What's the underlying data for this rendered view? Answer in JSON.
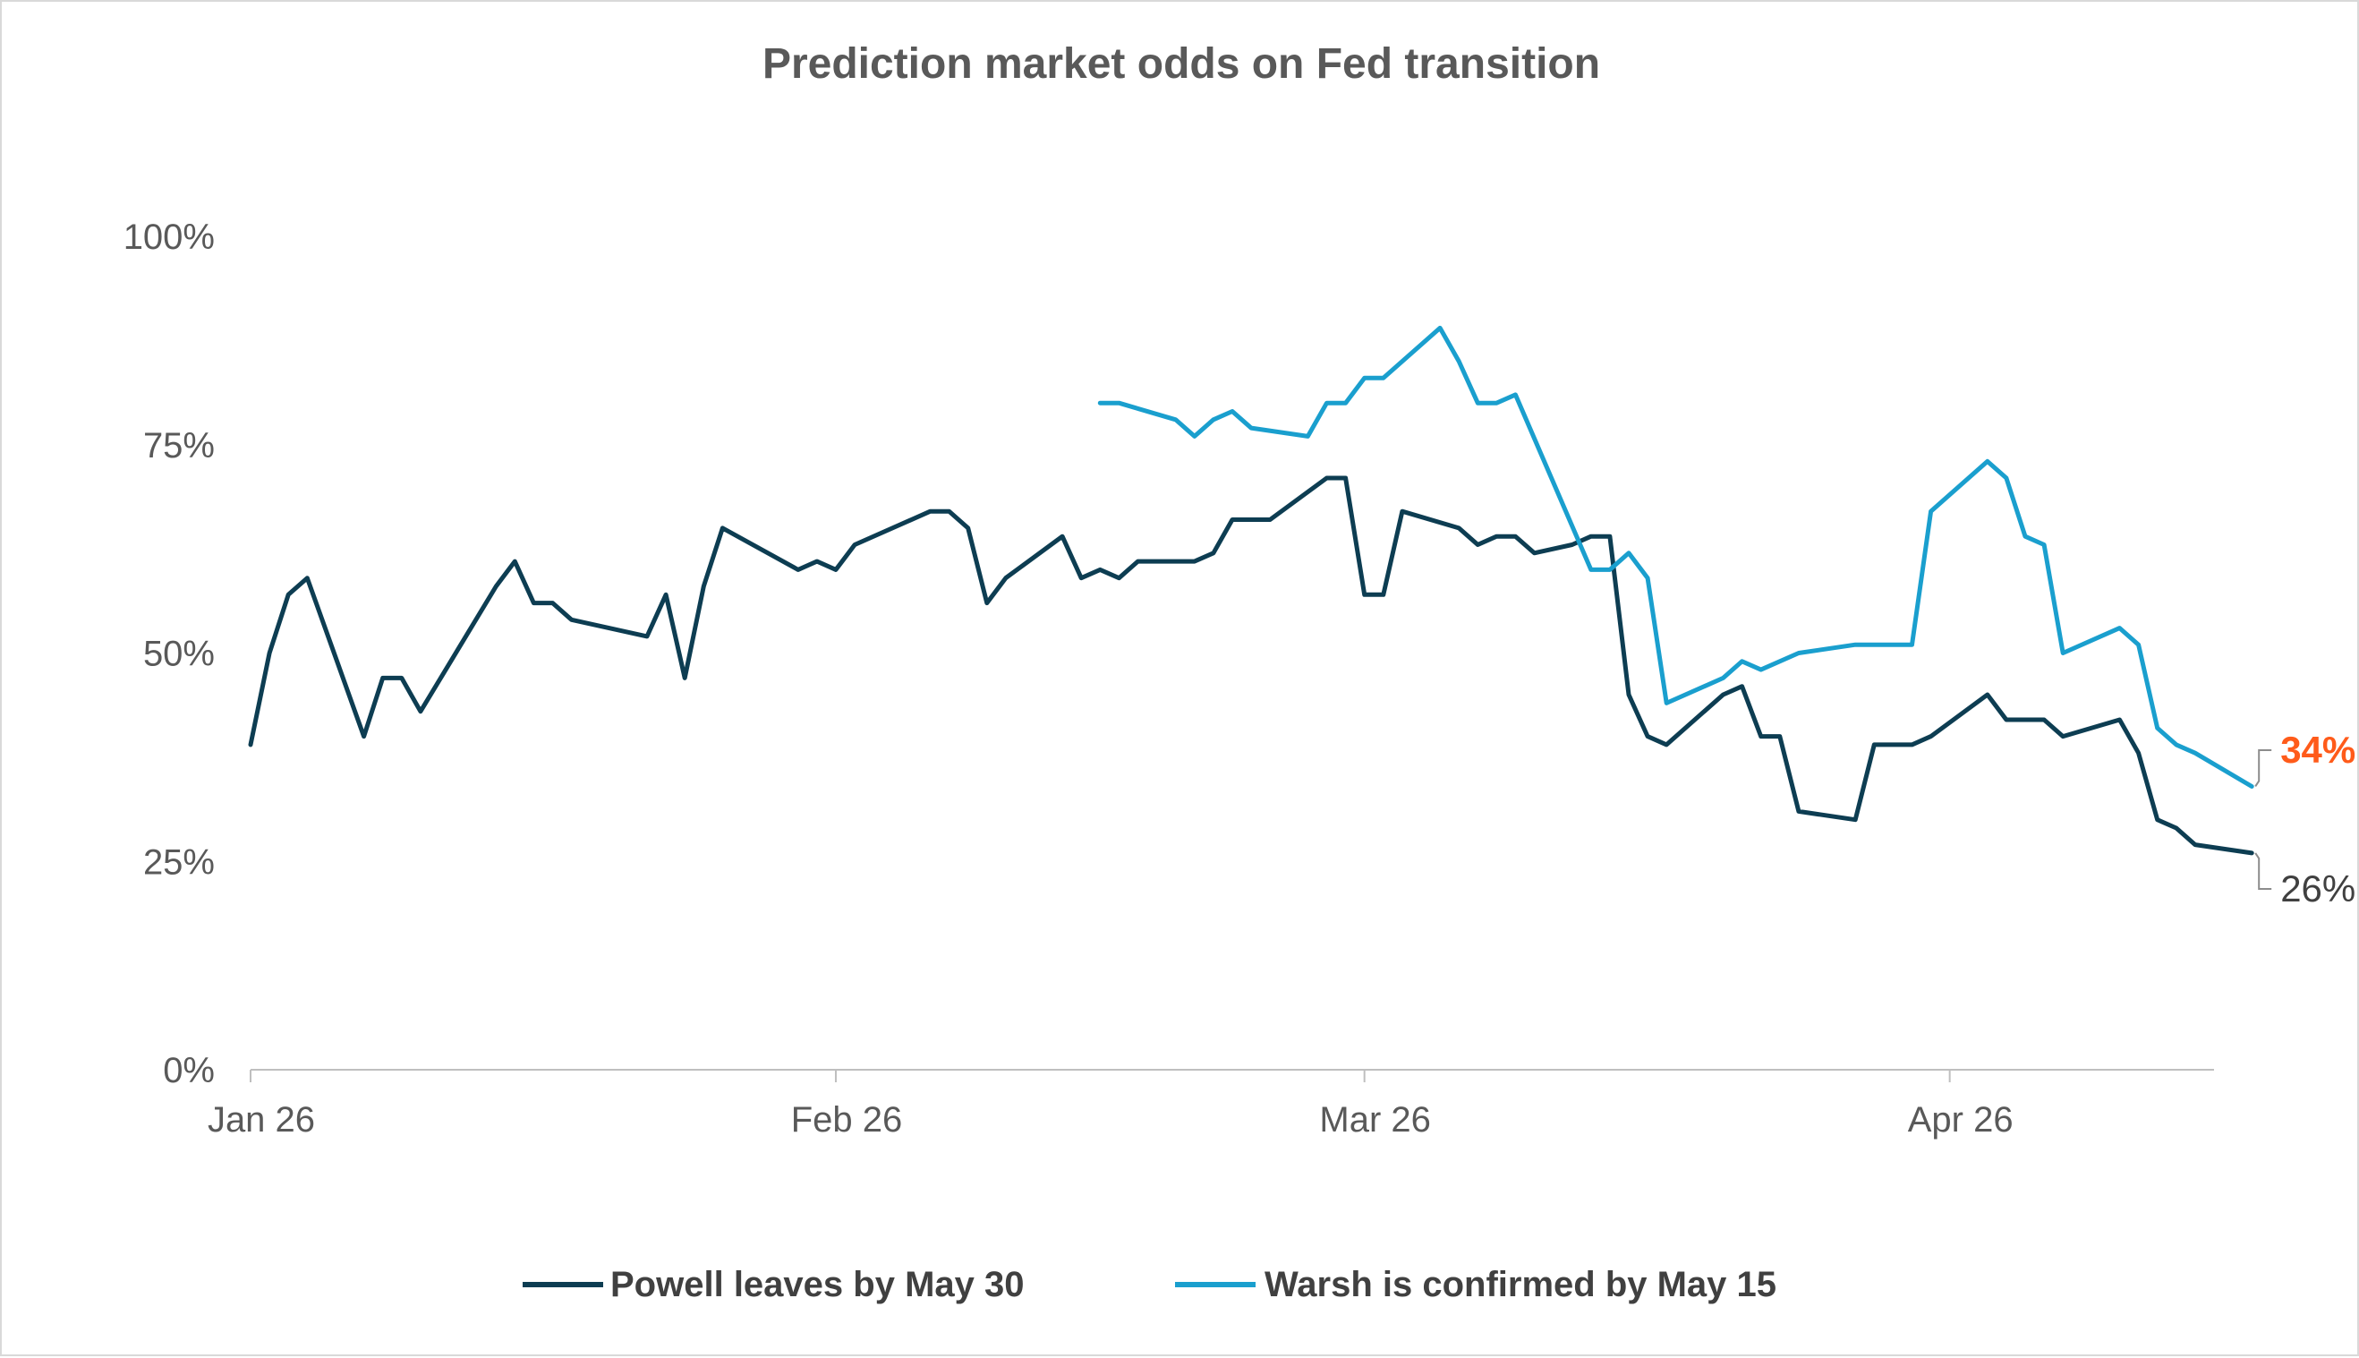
{
  "chart_data": {
    "type": "line",
    "title": "Prediction market odds on Fed transition",
    "xlabel": "",
    "ylabel": "",
    "x_ticks": [
      {
        "date": "2026-01-01",
        "label": "Jan 26"
      },
      {
        "date": "2026-02-01",
        "label": "Feb 26"
      },
      {
        "date": "2026-03-01",
        "label": "Mar 26"
      },
      {
        "date": "2026-04-01",
        "label": "Apr 26"
      }
    ],
    "xlim": [
      "2026-01-01",
      "2026-04-15"
    ],
    "y_ticks": [
      0,
      25,
      50,
      75,
      100
    ],
    "y_tick_labels": [
      "0%",
      "25%",
      "50%",
      "75%",
      "100%"
    ],
    "ylim": [
      0,
      100
    ],
    "grid": false,
    "legend_position": "bottom",
    "series": [
      {
        "name": "Powell leaves by May 30",
        "color": "#0d3d52",
        "end_label": "26%",
        "end_label_color": "#404040",
        "points": [
          [
            "2026-01-01",
            39
          ],
          [
            "2026-01-02",
            50
          ],
          [
            "2026-01-03",
            57
          ],
          [
            "2026-01-04",
            59
          ],
          [
            "2026-01-07",
            40
          ],
          [
            "2026-01-08",
            47
          ],
          [
            "2026-01-09",
            47
          ],
          [
            "2026-01-10",
            43
          ],
          [
            "2026-01-14",
            58
          ],
          [
            "2026-01-15",
            61
          ],
          [
            "2026-01-16",
            56
          ],
          [
            "2026-01-17",
            56
          ],
          [
            "2026-01-18",
            54
          ],
          [
            "2026-01-22",
            52
          ],
          [
            "2026-01-23",
            57
          ],
          [
            "2026-01-24",
            47
          ],
          [
            "2026-01-25",
            58
          ],
          [
            "2026-01-26",
            65
          ],
          [
            "2026-01-30",
            60
          ],
          [
            "2026-01-31",
            61
          ],
          [
            "2026-02-01",
            60
          ],
          [
            "2026-02-02",
            63
          ],
          [
            "2026-02-06",
            67
          ],
          [
            "2026-02-07",
            67
          ],
          [
            "2026-02-08",
            65
          ],
          [
            "2026-02-09",
            56
          ],
          [
            "2026-02-10",
            59
          ],
          [
            "2026-02-13",
            64
          ],
          [
            "2026-02-14",
            59
          ],
          [
            "2026-02-15",
            60
          ],
          [
            "2026-02-16",
            59
          ],
          [
            "2026-02-17",
            61
          ],
          [
            "2026-02-20",
            61
          ],
          [
            "2026-02-21",
            62
          ],
          [
            "2026-02-22",
            66
          ],
          [
            "2026-02-24",
            66
          ],
          [
            "2026-02-27",
            71
          ],
          [
            "2026-02-28",
            71
          ],
          [
            "2026-03-01",
            57
          ],
          [
            "2026-03-02",
            57
          ],
          [
            "2026-03-03",
            67
          ],
          [
            "2026-03-06",
            65
          ],
          [
            "2026-03-07",
            63
          ],
          [
            "2026-03-08",
            64
          ],
          [
            "2026-03-09",
            64
          ],
          [
            "2026-03-10",
            62
          ],
          [
            "2026-03-12",
            63
          ],
          [
            "2026-03-13",
            64
          ],
          [
            "2026-03-14",
            64
          ],
          [
            "2026-03-15",
            45
          ],
          [
            "2026-03-16",
            40
          ],
          [
            "2026-03-17",
            39
          ],
          [
            "2026-03-20",
            45
          ],
          [
            "2026-03-21",
            46
          ],
          [
            "2026-03-22",
            40
          ],
          [
            "2026-03-23",
            40
          ],
          [
            "2026-03-24",
            31
          ],
          [
            "2026-03-27",
            30
          ],
          [
            "2026-03-28",
            39
          ],
          [
            "2026-03-29",
            39
          ],
          [
            "2026-03-30",
            39
          ],
          [
            "2026-03-31",
            40
          ],
          [
            "2026-04-03",
            45
          ],
          [
            "2026-04-04",
            42
          ],
          [
            "2026-04-06",
            42
          ],
          [
            "2026-04-07",
            40
          ],
          [
            "2026-04-10",
            42
          ],
          [
            "2026-04-11",
            38
          ],
          [
            "2026-04-12",
            30
          ],
          [
            "2026-04-13",
            29
          ],
          [
            "2026-04-14",
            27
          ],
          [
            "2026-04-17",
            26
          ]
        ]
      },
      {
        "name": "Warsh is confirmed by May 15",
        "color": "#1a9fce",
        "end_label": "34%",
        "end_label_color": "#ff5b1a",
        "points": [
          [
            "2026-02-15",
            80
          ],
          [
            "2026-02-16",
            80
          ],
          [
            "2026-02-19",
            78
          ],
          [
            "2026-02-20",
            76
          ],
          [
            "2026-02-21",
            78
          ],
          [
            "2026-02-22",
            79
          ],
          [
            "2026-02-23",
            77
          ],
          [
            "2026-02-26",
            76
          ],
          [
            "2026-02-27",
            80
          ],
          [
            "2026-02-28",
            80
          ],
          [
            "2026-03-01",
            83
          ],
          [
            "2026-03-02",
            83
          ],
          [
            "2026-03-05",
            89
          ],
          [
            "2026-03-06",
            85
          ],
          [
            "2026-03-07",
            80
          ],
          [
            "2026-03-08",
            80
          ],
          [
            "2026-03-09",
            81
          ],
          [
            "2026-03-13",
            60
          ],
          [
            "2026-03-14",
            60
          ],
          [
            "2026-03-15",
            62
          ],
          [
            "2026-03-16",
            59
          ],
          [
            "2026-03-17",
            44
          ],
          [
            "2026-03-20",
            47
          ],
          [
            "2026-03-21",
            49
          ],
          [
            "2026-03-22",
            48
          ],
          [
            "2026-03-24",
            50
          ],
          [
            "2026-03-27",
            51
          ],
          [
            "2026-03-30",
            51
          ],
          [
            "2026-03-31",
            67
          ],
          [
            "2026-04-03",
            73
          ],
          [
            "2026-04-04",
            71
          ],
          [
            "2026-04-05",
            64
          ],
          [
            "2026-04-06",
            63
          ],
          [
            "2026-04-07",
            50
          ],
          [
            "2026-04-10",
            53
          ],
          [
            "2026-04-11",
            51
          ],
          [
            "2026-04-12",
            41
          ],
          [
            "2026-04-13",
            39
          ],
          [
            "2026-04-14",
            38
          ],
          [
            "2026-04-17",
            34
          ]
        ]
      }
    ]
  }
}
